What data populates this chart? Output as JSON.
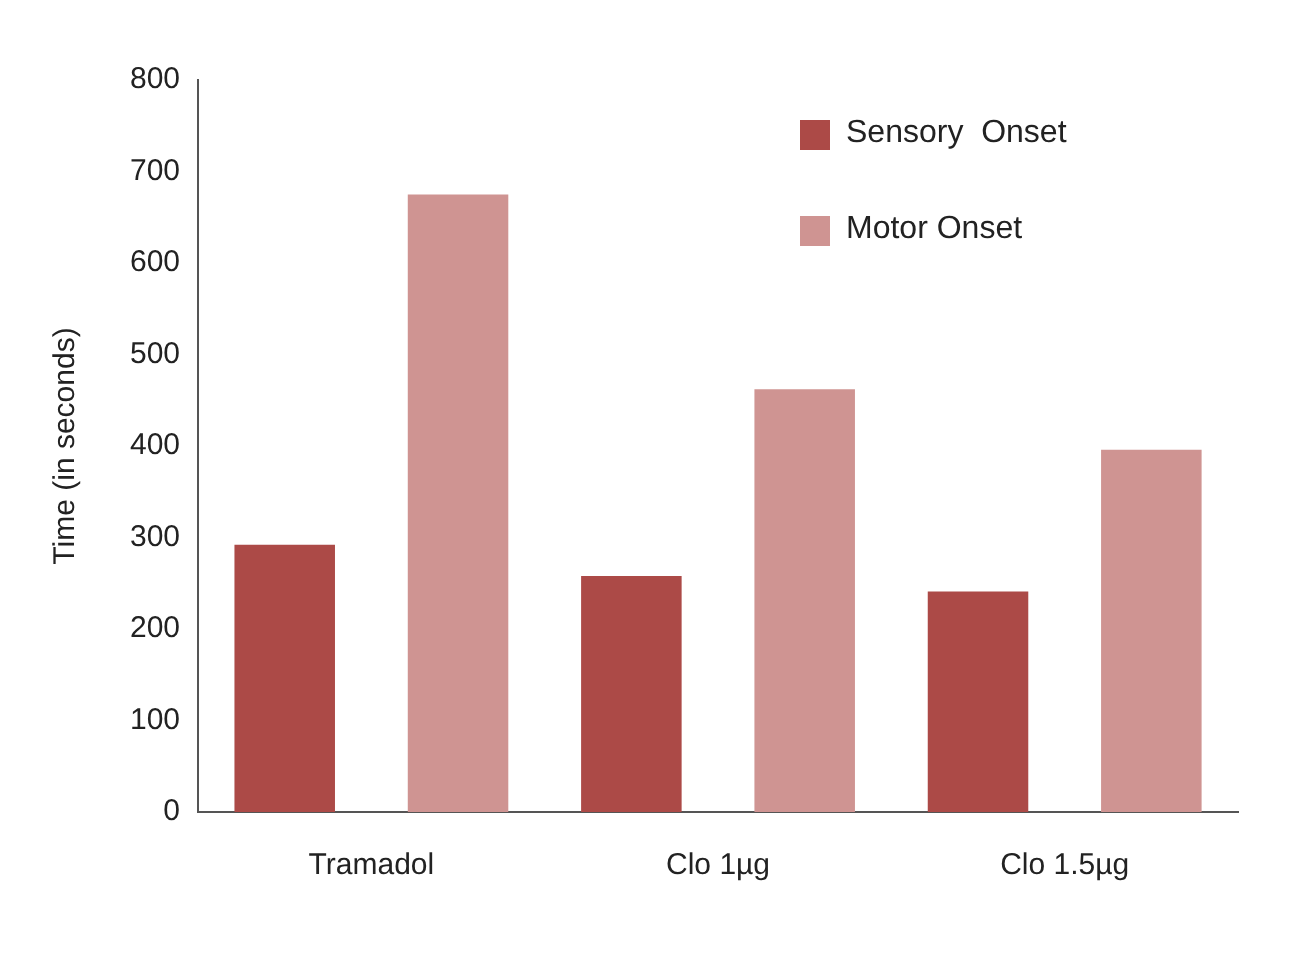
{
  "chart_data": {
    "type": "bar",
    "ylabel": "Time (in seconds)",
    "categories": [
      "Tramadol",
      "Clo 1µg",
      "Clo 1.5µg"
    ],
    "series": [
      {
        "name": "Sensory  Onset",
        "color": "#ac4a47",
        "values": [
          292,
          258,
          241
        ]
      },
      {
        "name": "Motor Onset",
        "color": "#cf9492",
        "values": [
          675,
          462,
          396
        ]
      }
    ],
    "ylim": [
      0,
      800
    ],
    "yticks": [
      0,
      100,
      200,
      300,
      400,
      500,
      600,
      700,
      800
    ],
    "grid": false,
    "legend": "top right"
  }
}
